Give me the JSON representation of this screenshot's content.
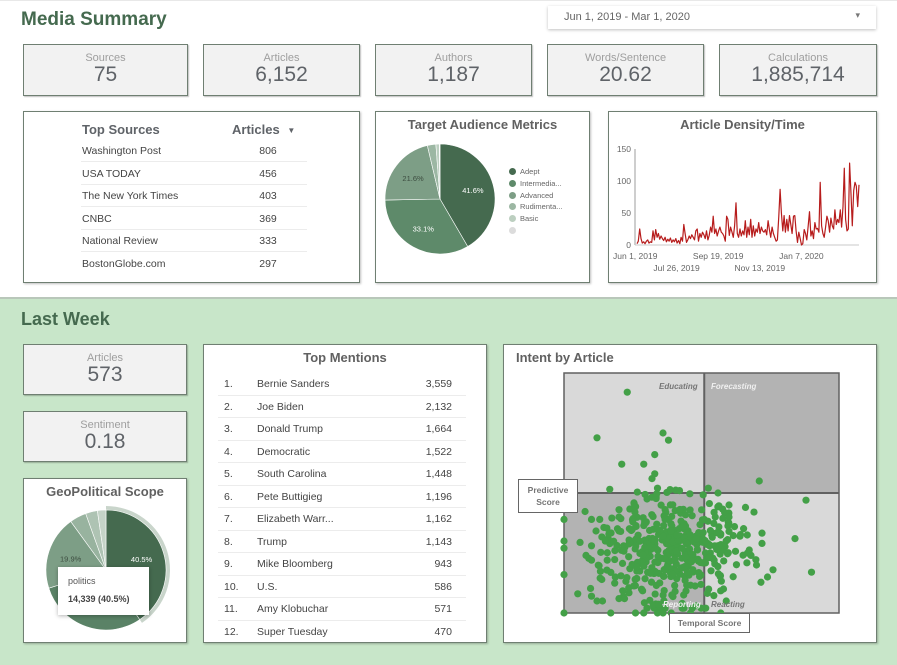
{
  "header": {
    "title": "Media Summary",
    "date_range": "Jun 1, 2019 - Mar 1, 2020",
    "date_caret": "▾"
  },
  "kpis": [
    {
      "label": "Sources",
      "value": "75"
    },
    {
      "label": "Articles",
      "value": "6,152"
    },
    {
      "label": "Authors",
      "value": "1,187"
    },
    {
      "label": "Words/Sentence",
      "value": "20.62"
    },
    {
      "label": "Calculations",
      "value": "1,885,714"
    }
  ],
  "top_sources": {
    "col_source": "Top Sources",
    "col_articles": "Articles",
    "sort_icon": "▼",
    "rows": [
      {
        "name": "Washington Post",
        "articles": "806"
      },
      {
        "name": "USA TODAY",
        "articles": "456"
      },
      {
        "name": "The New York Times",
        "articles": "403"
      },
      {
        "name": "CNBC",
        "articles": "369"
      },
      {
        "name": "National Review",
        "articles": "333"
      },
      {
        "name": "BostonGlobe.com",
        "articles": "297"
      }
    ]
  },
  "last_week": {
    "title": "Last Week",
    "kpis": [
      {
        "label": "Articles",
        "value": "573"
      },
      {
        "label": "Sentiment",
        "value": "0.18"
      }
    ]
  },
  "top_mentions": {
    "title": "Top Mentions",
    "rows": [
      {
        "rank": "1.",
        "name": "Bernie Sanders",
        "count": "3,559"
      },
      {
        "rank": "2.",
        "name": "Joe Biden",
        "count": "2,132"
      },
      {
        "rank": "3.",
        "name": "Donald Trump",
        "count": "1,664"
      },
      {
        "rank": "4.",
        "name": "Democratic",
        "count": "1,522"
      },
      {
        "rank": "5.",
        "name": "South Carolina",
        "count": "1,448"
      },
      {
        "rank": "6.",
        "name": "Pete Buttigieg",
        "count": "1,196"
      },
      {
        "rank": "7.",
        "name": "Elizabeth Warr...",
        "count": "1,162"
      },
      {
        "rank": "8.",
        "name": "Trump",
        "count": "1,143"
      },
      {
        "rank": "9.",
        "name": "Mike Bloomberg",
        "count": "943"
      },
      {
        "rank": "10.",
        "name": "U.S.",
        "count": "586"
      },
      {
        "rank": "11.",
        "name": "Amy Klobuchar",
        "count": "571"
      },
      {
        "rank": "12.",
        "name": "Super Tuesday",
        "count": "470"
      }
    ]
  },
  "geo_tooltip": {
    "label": "politics",
    "value": "14,339 (40.5%)"
  },
  "colors": {
    "brand_green": "#456a4f",
    "bottom_bg": "#c8e6c9",
    "line_red": "#b71c1c",
    "scatter_green": "#43a047"
  },
  "chart_data": [
    {
      "id": "target_audience",
      "type": "pie",
      "title": "Target Audience Metrics",
      "legend_position": "right",
      "slices": [
        {
          "label": "Adept",
          "value": 41.6,
          "color": "#456a4f",
          "show_label": true
        },
        {
          "label": "Intermedia...",
          "value": 33.1,
          "color": "#5e8a6a",
          "show_label": true
        },
        {
          "label": "Advanced",
          "value": 21.6,
          "color": "#7d9e86",
          "show_label": true
        },
        {
          "label": "Rudimenta...",
          "value": 2.5,
          "color": "#9cb7a3",
          "show_label": false
        },
        {
          "label": "Basic",
          "value": 1.0,
          "color": "#bccfc0",
          "show_label": false
        },
        {
          "label": "",
          "value": 0.2,
          "color": "#dcdcdc",
          "show_label": false
        }
      ]
    },
    {
      "id": "article_density",
      "type": "line",
      "title": "Article Density/Time",
      "xlabel": "",
      "ylabel": "",
      "ylim": [
        0,
        150
      ],
      "yticks": [
        "0",
        "50",
        "100",
        "150"
      ],
      "xticks": [
        {
          "label": "Jun 1, 2019",
          "pos": 0.0,
          "row": 0
        },
        {
          "label": "Jul 26, 2019",
          "pos": 0.2,
          "row": 1
        },
        {
          "label": "Sep 19, 2019",
          "pos": 0.4,
          "row": 0
        },
        {
          "label": "Nov 13, 2019",
          "pos": 0.6,
          "row": 1
        },
        {
          "label": "Jan 7, 2020",
          "pos": 0.8,
          "row": 0
        }
      ],
      "grid": false,
      "values": [
        2,
        6,
        25,
        10,
        3,
        5,
        2,
        6,
        8,
        3,
        5,
        4,
        22,
        8,
        24,
        12,
        18,
        9,
        14,
        10,
        7,
        12,
        5,
        9,
        6,
        11,
        4,
        8,
        5,
        10,
        3,
        7,
        2,
        12,
        6,
        32,
        18,
        4,
        8,
        14,
        10,
        16,
        12,
        8,
        22,
        25,
        6,
        18,
        12,
        20,
        16,
        10,
        22,
        8,
        15,
        28,
        20,
        45,
        18,
        25,
        14,
        22,
        28,
        20,
        18,
        14,
        6,
        45,
        40,
        15,
        28,
        20,
        12,
        30,
        66,
        18,
        12,
        25,
        14,
        22,
        16,
        38,
        12,
        28,
        16,
        40,
        12,
        30,
        14,
        25,
        20,
        35,
        18,
        28,
        22,
        20,
        24,
        16,
        38,
        24,
        12,
        28,
        18,
        12,
        6,
        8,
        45,
        87,
        50,
        22,
        46,
        20,
        40,
        22,
        46,
        32,
        18,
        45,
        46,
        22,
        4,
        20,
        10,
        0,
        2,
        24,
        18,
        8,
        30,
        52,
        14,
        22,
        10,
        35,
        25,
        26,
        20,
        98,
        30,
        18,
        12,
        28,
        45,
        38,
        20,
        42,
        30,
        25,
        55,
        32,
        40,
        35,
        55,
        28,
        60,
        120,
        40,
        22,
        25,
        128,
        80,
        30,
        85,
        98,
        92,
        60,
        94
      ]
    },
    {
      "id": "geopolitical_scope",
      "type": "pie",
      "title": "GeoPolitical Scope",
      "slices": [
        {
          "label": "politics",
          "value": 40.5,
          "color": "#456a4f",
          "show_label": true,
          "highlight": true
        },
        {
          "label": "",
          "value": 29.6,
          "color": "#5a8266",
          "show_label": false
        },
        {
          "label": "",
          "value": 19.9,
          "color": "#7d9e86",
          "show_label": true
        },
        {
          "label": "",
          "value": 4.5,
          "color": "#98b39f",
          "show_label": false
        },
        {
          "label": "",
          "value": 3.2,
          "color": "#aec3b3",
          "show_label": false
        },
        {
          "label": "",
          "value": 2.3,
          "color": "#c5d4c8",
          "show_label": false
        }
      ]
    },
    {
      "id": "intent_by_article",
      "type": "scatter",
      "title": "Intent by Article",
      "xlabel": "Temporal Score",
      "ylabel": "Predictive Score",
      "xlim": [
        0,
        1
      ],
      "ylim": [
        0,
        1
      ],
      "quadrant_split": [
        0.51,
        0.5
      ],
      "quadrants": {
        "top_left": "Educating",
        "top_right": "Forecasting",
        "bottom_left": "Reporting",
        "bottom_right": "Reacting"
      },
      "cluster": {
        "center": [
          0.39,
          0.26
        ],
        "spread": [
          0.12,
          0.12
        ],
        "count": 420
      },
      "points": [
        [
          0.23,
          0.92
        ],
        [
          0.12,
          0.73
        ],
        [
          0.36,
          0.75
        ],
        [
          0.38,
          0.72
        ],
        [
          0.33,
          0.66
        ],
        [
          0.21,
          0.62
        ],
        [
          0.29,
          0.62
        ],
        [
          0.33,
          0.58
        ],
        [
          0.32,
          0.56
        ],
        [
          0.34,
          0.52
        ],
        [
          0.42,
          0.51
        ],
        [
          0.71,
          0.55
        ],
        [
          0.88,
          0.47
        ],
        [
          0.84,
          0.31
        ],
        [
          0.9,
          0.17
        ],
        [
          0.64,
          0.32
        ],
        [
          0.68,
          0.24
        ],
        [
          0.7,
          0.2
        ],
        [
          0.76,
          0.18
        ],
        [
          0.74,
          0.15
        ],
        [
          0.6,
          0.4
        ],
        [
          0.62,
          0.36
        ],
        [
          0.6,
          0.34
        ],
        [
          0.66,
          0.44
        ],
        [
          0.0,
          0.45
        ],
        [
          0.0,
          0.39
        ],
        [
          0.0,
          0.3
        ],
        [
          0.0,
          0.27
        ],
        [
          0.0,
          0.16
        ],
        [
          0.0,
          0.0
        ],
        [
          0.17,
          0.0
        ],
        [
          0.26,
          0.0
        ],
        [
          0.29,
          0.0
        ],
        [
          0.34,
          0.0
        ],
        [
          0.36,
          0.0
        ],
        [
          0.39,
          0.0
        ],
        [
          0.46,
          0.0
        ],
        [
          0.57,
          0.0
        ],
        [
          0.1,
          0.39
        ],
        [
          0.13,
          0.39
        ],
        [
          0.1,
          0.28
        ],
        [
          0.1,
          0.22
        ],
        [
          0.08,
          0.24
        ],
        [
          0.1,
          0.07
        ],
        [
          0.12,
          0.05
        ],
        [
          0.14,
          0.05
        ],
        [
          0.2,
          0.06
        ],
        [
          0.22,
          0.06
        ],
        [
          0.59,
          0.05
        ],
        [
          0.58,
          0.1
        ],
        [
          0.48,
          0.03
        ],
        [
          0.43,
          0.04
        ],
        [
          0.05,
          0.08
        ],
        [
          0.2,
          0.4
        ],
        [
          0.25,
          0.38
        ],
        [
          0.55,
          0.4
        ],
        [
          0.56,
          0.5
        ],
        [
          0.6,
          0.45
        ]
      ]
    }
  ]
}
